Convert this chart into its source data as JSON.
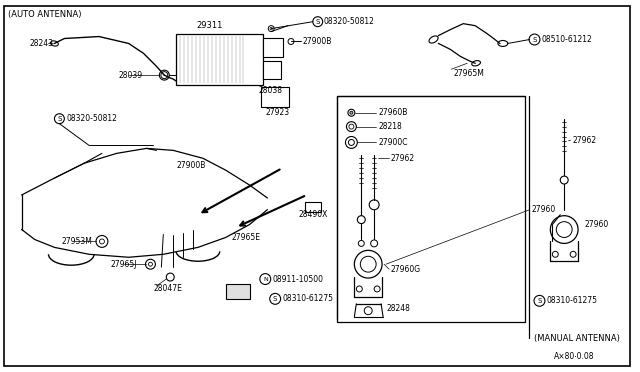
{
  "background_color": "#ffffff",
  "line_color": "#000000",
  "text_color": "#000000",
  "fig_width": 6.4,
  "fig_height": 3.72,
  "dpi": 100,
  "labels": {
    "auto_antenna": "(AUTO ANTENNA)",
    "manual_antenna": "(MANUAL ANTENNA)",
    "p29311": "29311",
    "p28243": "28243",
    "p28039": "28039",
    "p28038": "28038",
    "p27923": "27923",
    "p27900B_top": "27900B",
    "p27900B_mid": "27900B",
    "p08320_top": "08320-50812",
    "p08320_left": "08320-50812",
    "p27953M": "27953M",
    "p27965J": "27965J",
    "p28047E": "28047E",
    "p27965E": "27965E",
    "p28490X": "28490X",
    "p08911": "08911-10500",
    "p08310_btm": "08310-61275",
    "p08310_right": "08310-61275",
    "p27960B": "27960B",
    "p28218": "28218",
    "p27900C": "27900C",
    "p27962_mid": "27962",
    "p27962_right": "27962",
    "p27960G": "27960G",
    "p27960_mid": "27960",
    "p27960_right": "27960",
    "p28248": "28248",
    "p27965M": "27965M",
    "p08510": "08510-61212",
    "footer": "A×80⋅0.08"
  }
}
